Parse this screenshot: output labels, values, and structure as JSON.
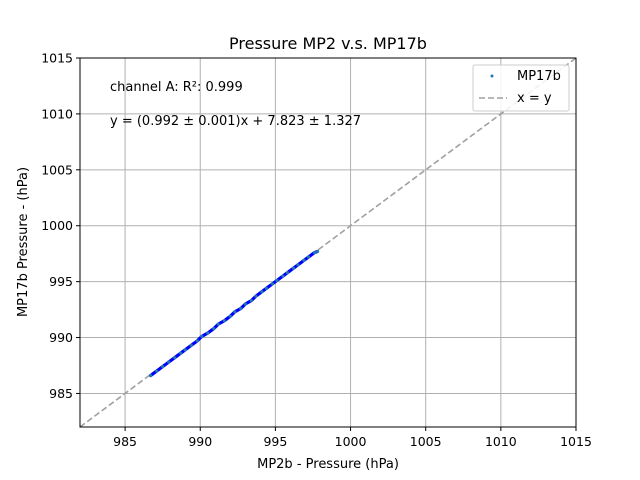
{
  "chart_data": {
    "type": "scatter",
    "title": "Pressure MP2 v.s. MP17b",
    "xlabel": "MP2b - Pressure (hPa)",
    "ylabel": "MP17b Pressure - (hPa)",
    "xlim": [
      982,
      1015
    ],
    "ylim": [
      982,
      1015
    ],
    "xticks": [
      985,
      990,
      995,
      1000,
      1005,
      1010,
      1015
    ],
    "yticks": [
      985,
      990,
      995,
      1000,
      1005,
      1010,
      1015
    ],
    "grid": true,
    "legend_placement": "upper right",
    "annotations": [
      "channel A: R²: 0.999",
      "y = (0.992 ± 0.001)x + 7.823 ± 1.327"
    ],
    "series": [
      {
        "name": "MP17b",
        "kind": "scatter",
        "color": "#1f77b4",
        "fit_color": "#0000ff",
        "x": [
          986.7,
          987.1,
          987.5,
          987.9,
          988.3,
          988.7,
          989.0,
          989.4,
          989.8,
          990.1,
          990.5,
          990.9,
          991.2,
          991.6,
          992.0,
          992.3,
          992.7,
          993.0,
          993.4,
          993.7,
          994.1,
          994.4,
          994.8,
          995.1,
          995.5,
          995.8,
          996.2,
          996.5,
          996.9,
          997.2,
          997.6,
          997.8
        ],
        "y": [
          986.6,
          987.0,
          987.4,
          987.8,
          988.2,
          988.6,
          988.9,
          989.3,
          989.7,
          990.1,
          990.4,
          990.8,
          991.2,
          991.5,
          991.9,
          992.3,
          992.6,
          993.0,
          993.3,
          993.7,
          994.1,
          994.4,
          994.8,
          995.1,
          995.5,
          995.8,
          996.2,
          996.5,
          996.9,
          997.2,
          997.6,
          997.7
        ]
      },
      {
        "name": "x = y",
        "kind": "line",
        "style": "dashed",
        "color": "#a0a0a0",
        "x": [
          982,
          1015
        ],
        "y": [
          982,
          1015
        ]
      }
    ]
  }
}
